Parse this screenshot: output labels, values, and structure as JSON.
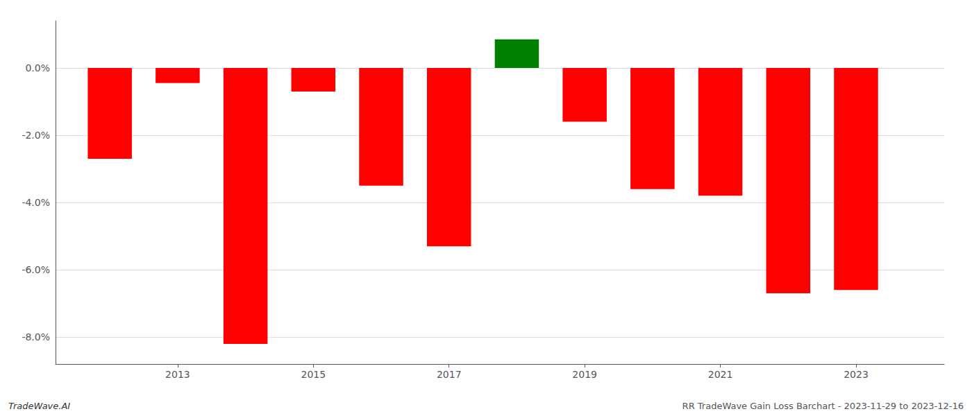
{
  "chart_data": {
    "type": "bar",
    "x": [
      2012,
      2013,
      2014,
      2015,
      2016,
      2017,
      2018,
      2019,
      2020,
      2021,
      2022,
      2023
    ],
    "values": [
      -2.7,
      -0.45,
      -8.2,
      -0.7,
      -3.5,
      -5.3,
      0.85,
      -1.6,
      -3.6,
      -3.8,
      -6.7,
      -6.6
    ],
    "colors": [
      "#ff0000",
      "#ff0000",
      "#ff0000",
      "#ff0000",
      "#ff0000",
      "#ff0000",
      "#008000",
      "#ff0000",
      "#ff0000",
      "#ff0000",
      "#ff0000",
      "#ff0000"
    ],
    "xlim": [
      2011.2,
      2024.3
    ],
    "xticks": [
      2013,
      2015,
      2017,
      2019,
      2021,
      2023
    ],
    "ylim": [
      -8.8,
      1.4
    ],
    "yticks": [
      {
        "value": 0.0,
        "label": "0.0%"
      },
      {
        "value": -2.0,
        "label": "-2.0%"
      },
      {
        "value": -4.0,
        "label": "-4.0%"
      },
      {
        "value": -6.0,
        "label": "-6.0%"
      },
      {
        "value": -8.0,
        "label": "-8.0%"
      }
    ],
    "grid": true,
    "annotations": [
      "TradeWave.AI",
      "RR TradeWave Gain Loss Barchart - 2023-11-29 to 2023-12-16"
    ]
  }
}
